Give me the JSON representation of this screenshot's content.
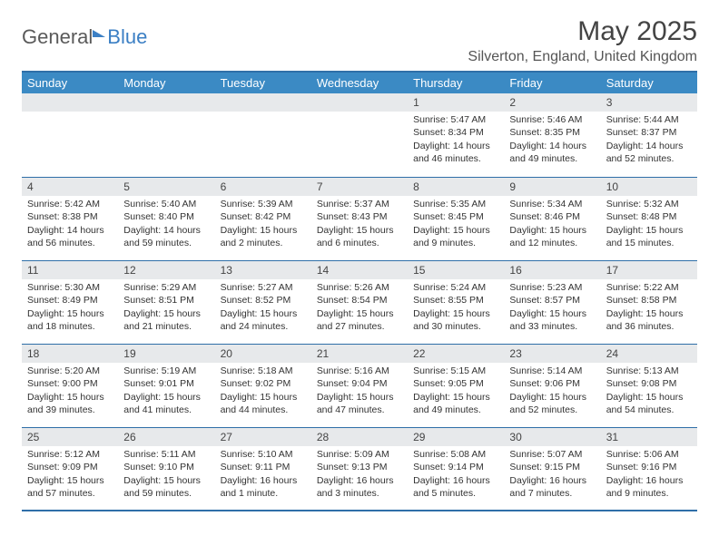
{
  "brand": {
    "word1": "General",
    "word2": "Blue"
  },
  "title": "May 2025",
  "location": "Silverton, England, United Kingdom",
  "colors": {
    "header_bg": "#3b8ac4",
    "border": "#2f6fa8",
    "daynum_bg": "#e7e9eb",
    "text": "#333333",
    "brand_gray": "#5a5a5a",
    "brand_blue": "#3b7fc4"
  },
  "day_headers": [
    "Sunday",
    "Monday",
    "Tuesday",
    "Wednesday",
    "Thursday",
    "Friday",
    "Saturday"
  ],
  "weeks": [
    [
      {
        "n": "",
        "lines": [
          "",
          "",
          "",
          ""
        ]
      },
      {
        "n": "",
        "lines": [
          "",
          "",
          "",
          ""
        ]
      },
      {
        "n": "",
        "lines": [
          "",
          "",
          "",
          ""
        ]
      },
      {
        "n": "",
        "lines": [
          "",
          "",
          "",
          ""
        ]
      },
      {
        "n": "1",
        "lines": [
          "Sunrise: 5:47 AM",
          "Sunset: 8:34 PM",
          "Daylight: 14 hours",
          "and 46 minutes."
        ]
      },
      {
        "n": "2",
        "lines": [
          "Sunrise: 5:46 AM",
          "Sunset: 8:35 PM",
          "Daylight: 14 hours",
          "and 49 minutes."
        ]
      },
      {
        "n": "3",
        "lines": [
          "Sunrise: 5:44 AM",
          "Sunset: 8:37 PM",
          "Daylight: 14 hours",
          "and 52 minutes."
        ]
      }
    ],
    [
      {
        "n": "4",
        "lines": [
          "Sunrise: 5:42 AM",
          "Sunset: 8:38 PM",
          "Daylight: 14 hours",
          "and 56 minutes."
        ]
      },
      {
        "n": "5",
        "lines": [
          "Sunrise: 5:40 AM",
          "Sunset: 8:40 PM",
          "Daylight: 14 hours",
          "and 59 minutes."
        ]
      },
      {
        "n": "6",
        "lines": [
          "Sunrise: 5:39 AM",
          "Sunset: 8:42 PM",
          "Daylight: 15 hours",
          "and 2 minutes."
        ]
      },
      {
        "n": "7",
        "lines": [
          "Sunrise: 5:37 AM",
          "Sunset: 8:43 PM",
          "Daylight: 15 hours",
          "and 6 minutes."
        ]
      },
      {
        "n": "8",
        "lines": [
          "Sunrise: 5:35 AM",
          "Sunset: 8:45 PM",
          "Daylight: 15 hours",
          "and 9 minutes."
        ]
      },
      {
        "n": "9",
        "lines": [
          "Sunrise: 5:34 AM",
          "Sunset: 8:46 PM",
          "Daylight: 15 hours",
          "and 12 minutes."
        ]
      },
      {
        "n": "10",
        "lines": [
          "Sunrise: 5:32 AM",
          "Sunset: 8:48 PM",
          "Daylight: 15 hours",
          "and 15 minutes."
        ]
      }
    ],
    [
      {
        "n": "11",
        "lines": [
          "Sunrise: 5:30 AM",
          "Sunset: 8:49 PM",
          "Daylight: 15 hours",
          "and 18 minutes."
        ]
      },
      {
        "n": "12",
        "lines": [
          "Sunrise: 5:29 AM",
          "Sunset: 8:51 PM",
          "Daylight: 15 hours",
          "and 21 minutes."
        ]
      },
      {
        "n": "13",
        "lines": [
          "Sunrise: 5:27 AM",
          "Sunset: 8:52 PM",
          "Daylight: 15 hours",
          "and 24 minutes."
        ]
      },
      {
        "n": "14",
        "lines": [
          "Sunrise: 5:26 AM",
          "Sunset: 8:54 PM",
          "Daylight: 15 hours",
          "and 27 minutes."
        ]
      },
      {
        "n": "15",
        "lines": [
          "Sunrise: 5:24 AM",
          "Sunset: 8:55 PM",
          "Daylight: 15 hours",
          "and 30 minutes."
        ]
      },
      {
        "n": "16",
        "lines": [
          "Sunrise: 5:23 AM",
          "Sunset: 8:57 PM",
          "Daylight: 15 hours",
          "and 33 minutes."
        ]
      },
      {
        "n": "17",
        "lines": [
          "Sunrise: 5:22 AM",
          "Sunset: 8:58 PM",
          "Daylight: 15 hours",
          "and 36 minutes."
        ]
      }
    ],
    [
      {
        "n": "18",
        "lines": [
          "Sunrise: 5:20 AM",
          "Sunset: 9:00 PM",
          "Daylight: 15 hours",
          "and 39 minutes."
        ]
      },
      {
        "n": "19",
        "lines": [
          "Sunrise: 5:19 AM",
          "Sunset: 9:01 PM",
          "Daylight: 15 hours",
          "and 41 minutes."
        ]
      },
      {
        "n": "20",
        "lines": [
          "Sunrise: 5:18 AM",
          "Sunset: 9:02 PM",
          "Daylight: 15 hours",
          "and 44 minutes."
        ]
      },
      {
        "n": "21",
        "lines": [
          "Sunrise: 5:16 AM",
          "Sunset: 9:04 PM",
          "Daylight: 15 hours",
          "and 47 minutes."
        ]
      },
      {
        "n": "22",
        "lines": [
          "Sunrise: 5:15 AM",
          "Sunset: 9:05 PM",
          "Daylight: 15 hours",
          "and 49 minutes."
        ]
      },
      {
        "n": "23",
        "lines": [
          "Sunrise: 5:14 AM",
          "Sunset: 9:06 PM",
          "Daylight: 15 hours",
          "and 52 minutes."
        ]
      },
      {
        "n": "24",
        "lines": [
          "Sunrise: 5:13 AM",
          "Sunset: 9:08 PM",
          "Daylight: 15 hours",
          "and 54 minutes."
        ]
      }
    ],
    [
      {
        "n": "25",
        "lines": [
          "Sunrise: 5:12 AM",
          "Sunset: 9:09 PM",
          "Daylight: 15 hours",
          "and 57 minutes."
        ]
      },
      {
        "n": "26",
        "lines": [
          "Sunrise: 5:11 AM",
          "Sunset: 9:10 PM",
          "Daylight: 15 hours",
          "and 59 minutes."
        ]
      },
      {
        "n": "27",
        "lines": [
          "Sunrise: 5:10 AM",
          "Sunset: 9:11 PM",
          "Daylight: 16 hours",
          "and 1 minute."
        ]
      },
      {
        "n": "28",
        "lines": [
          "Sunrise: 5:09 AM",
          "Sunset: 9:13 PM",
          "Daylight: 16 hours",
          "and 3 minutes."
        ]
      },
      {
        "n": "29",
        "lines": [
          "Sunrise: 5:08 AM",
          "Sunset: 9:14 PM",
          "Daylight: 16 hours",
          "and 5 minutes."
        ]
      },
      {
        "n": "30",
        "lines": [
          "Sunrise: 5:07 AM",
          "Sunset: 9:15 PM",
          "Daylight: 16 hours",
          "and 7 minutes."
        ]
      },
      {
        "n": "31",
        "lines": [
          "Sunrise: 5:06 AM",
          "Sunset: 9:16 PM",
          "Daylight: 16 hours",
          "and 9 minutes."
        ]
      }
    ]
  ]
}
